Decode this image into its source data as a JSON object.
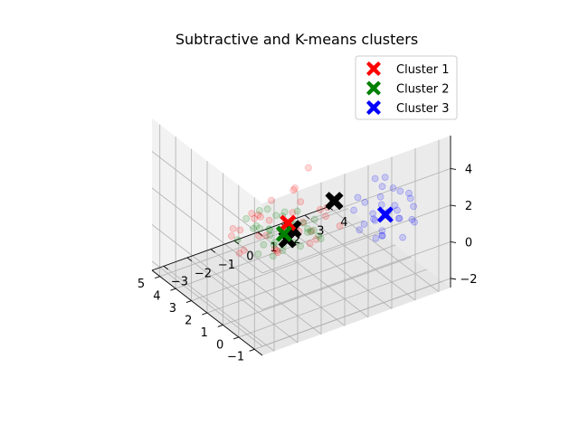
{
  "chart_data": {
    "type": "scatter",
    "projection": "3d",
    "title": "Subtractive and K-means clusters",
    "grid": true,
    "legend_position": "top-right",
    "axes": {
      "x": {
        "ticks": [
          "-1",
          "0",
          "1",
          "2",
          "3",
          "4",
          "5"
        ],
        "range": [
          -1.5,
          5.5
        ]
      },
      "y": {
        "ticks": [
          "-3",
          "-2",
          "-1",
          "0",
          "1",
          "2",
          "3",
          "4"
        ],
        "range": [
          -3.5,
          4.5
        ]
      },
      "z": {
        "ticks": [
          "-2",
          "0",
          "2",
          "4"
        ],
        "range": [
          -2.5,
          5.8
        ]
      }
    },
    "series": [
      {
        "name": "Cluster 1",
        "color": "#ff0000",
        "center": [
          1.2,
          -0.6,
          1.6
        ],
        "points": [
          [
            0.2,
            -0.8,
            1.9
          ],
          [
            0.5,
            -1.2,
            2.3
          ],
          [
            1.8,
            -0.5,
            0.8
          ],
          [
            2.1,
            0.2,
            1.2
          ],
          [
            0.9,
            -1.6,
            2.4
          ],
          [
            1.5,
            0.6,
            0.4
          ],
          [
            2.6,
            -0.9,
            0.1
          ],
          [
            0.3,
            0.4,
            2.1
          ],
          [
            1.1,
            -2.1,
            2.6
          ],
          [
            3.2,
            -0.2,
            -0.6
          ],
          [
            2.8,
            1.1,
            -0.2
          ],
          [
            0.7,
            -0.4,
            3.0
          ],
          [
            1.9,
            -1.3,
            1.8
          ],
          [
            1.4,
            0.9,
            1.5
          ],
          [
            2.3,
            -2.2,
            1.3
          ],
          [
            0.1,
            -1.9,
            1.5
          ],
          [
            3.5,
            0.7,
            -0.9
          ],
          [
            1.6,
            -0.1,
            2.9
          ],
          [
            0.6,
            1.2,
            1.0
          ],
          [
            2.9,
            -1.5,
            0.5
          ],
          [
            1.0,
            -2.8,
            1.1
          ],
          [
            2.4,
            0.5,
            2.2
          ],
          [
            -0.2,
            -0.6,
            1.4
          ],
          [
            1.3,
            -1.0,
            0.2
          ],
          [
            2.0,
            1.6,
            0.9
          ],
          [
            3.8,
            -0.4,
            0.3
          ],
          [
            0.4,
            -2.4,
            3.4
          ],
          [
            1.7,
            -0.7,
            -0.3
          ],
          [
            -0.5,
            -1.4,
            2.8
          ],
          [
            2.7,
            -0.3,
            1.7
          ],
          [
            0.8,
            0.0,
            4.6
          ],
          [
            3.0,
            1.8,
            -1.6
          ],
          [
            1.2,
            -3.0,
            2.0
          ],
          [
            2.2,
            -1.8,
            0.0
          ]
        ]
      },
      {
        "name": "Cluster 2",
        "color": "#008000",
        "center": [
          1.9,
          -0.3,
          0.4
        ],
        "points": [
          [
            1.6,
            -0.4,
            0.6
          ],
          [
            2.2,
            0.1,
            0.2
          ],
          [
            1.9,
            -0.9,
            0.9
          ],
          [
            2.5,
            -0.5,
            0.0
          ],
          [
            1.3,
            0.3,
            0.8
          ],
          [
            2.8,
            0.4,
            -0.3
          ],
          [
            1.7,
            -1.3,
            0.4
          ],
          [
            2.0,
            0.6,
            0.5
          ],
          [
            2.4,
            -1.0,
            0.7
          ],
          [
            1.5,
            -0.1,
            1.1
          ],
          [
            3.0,
            -0.2,
            -0.1
          ],
          [
            2.1,
            -0.6,
            -0.2
          ],
          [
            1.8,
            0.9,
            0.1
          ],
          [
            2.6,
            0.2,
            0.9
          ],
          [
            1.4,
            -0.7,
            0.0
          ],
          [
            2.3,
            1.1,
            -0.4
          ],
          [
            2.9,
            -0.8,
            0.4
          ],
          [
            1.2,
            0.7,
            0.3
          ],
          [
            2.7,
            0.8,
            0.6
          ],
          [
            1.6,
            -1.6,
            0.1
          ],
          [
            3.3,
            0.3,
            0.2
          ],
          [
            2.0,
            -0.3,
            1.3
          ],
          [
            1.1,
            -0.4,
            0.5
          ],
          [
            2.5,
            1.4,
            0.0
          ],
          [
            3.1,
            -1.1,
            0.8
          ],
          [
            1.9,
            0.4,
            -0.6
          ],
          [
            2.2,
            -1.4,
            1.0
          ],
          [
            1.5,
            1.0,
            -0.2
          ],
          [
            2.8,
            -0.4,
            1.2
          ],
          [
            3.4,
            1.0,
            -0.5
          ],
          [
            1.0,
            0.1,
            0.9
          ],
          [
            2.4,
            0.0,
            -0.7
          ],
          [
            1.7,
            -0.9,
            -0.4
          ],
          [
            2.6,
            -1.8,
            0.3
          ],
          [
            3.6,
            -0.2,
            0.5
          ],
          [
            1.3,
            -1.1,
            0.7
          ]
        ]
      },
      {
        "name": "Cluster 3",
        "color": "#0000ff",
        "center": [
          -0.2,
          2.6,
          1.5
        ],
        "points": [
          [
            -0.5,
            2.9,
            1.8
          ],
          [
            0.1,
            2.3,
            1.2
          ],
          [
            -0.8,
            2.6,
            2.4
          ],
          [
            0.4,
            3.1,
            1.0
          ],
          [
            -0.3,
            2.0,
            1.9
          ],
          [
            0.6,
            2.7,
            0.6
          ],
          [
            -1.0,
            3.3,
            1.3
          ],
          [
            0.2,
            3.5,
            2.1
          ],
          [
            -0.6,
            2.2,
            0.8
          ],
          [
            0.8,
            2.4,
            1.6
          ],
          [
            -0.1,
            3.0,
            2.7
          ],
          [
            0.5,
            1.9,
            2.3
          ],
          [
            -0.9,
            2.0,
            1.1
          ],
          [
            0.3,
            2.8,
            0.2
          ],
          [
            -0.4,
            3.6,
            0.9
          ],
          [
            1.0,
            3.2,
            1.4
          ],
          [
            -1.2,
            2.5,
            2.0
          ],
          [
            0.7,
            2.1,
            0.3
          ],
          [
            -0.2,
            1.7,
            1.4
          ],
          [
            0.0,
            3.8,
            1.7
          ],
          [
            -0.7,
            3.0,
            0.4
          ],
          [
            0.9,
            2.9,
            2.6
          ],
          [
            -0.3,
            2.4,
            3.2
          ],
          [
            0.1,
            4.0,
            1.1
          ],
          [
            -1.0,
            1.9,
            2.9
          ],
          [
            1.2,
            2.2,
            1.0
          ],
          [
            -0.5,
            3.4,
            2.5
          ],
          [
            0.4,
            2.6,
            -0.2
          ],
          [
            1.9,
            4.0,
            1.5
          ],
          [
            -0.8,
            2.8,
            1.6
          ]
        ]
      }
    ],
    "center_markers": [
      {
        "color": "#000000",
        "position": [
          0.2,
          -1.3,
          1.7
        ]
      },
      {
        "color": "#000000",
        "position": [
          2.1,
          0.2,
          0.3
        ]
      },
      {
        "color": "#000000",
        "position": [
          1.4,
          1.5,
          1.7
        ]
      }
    ]
  }
}
